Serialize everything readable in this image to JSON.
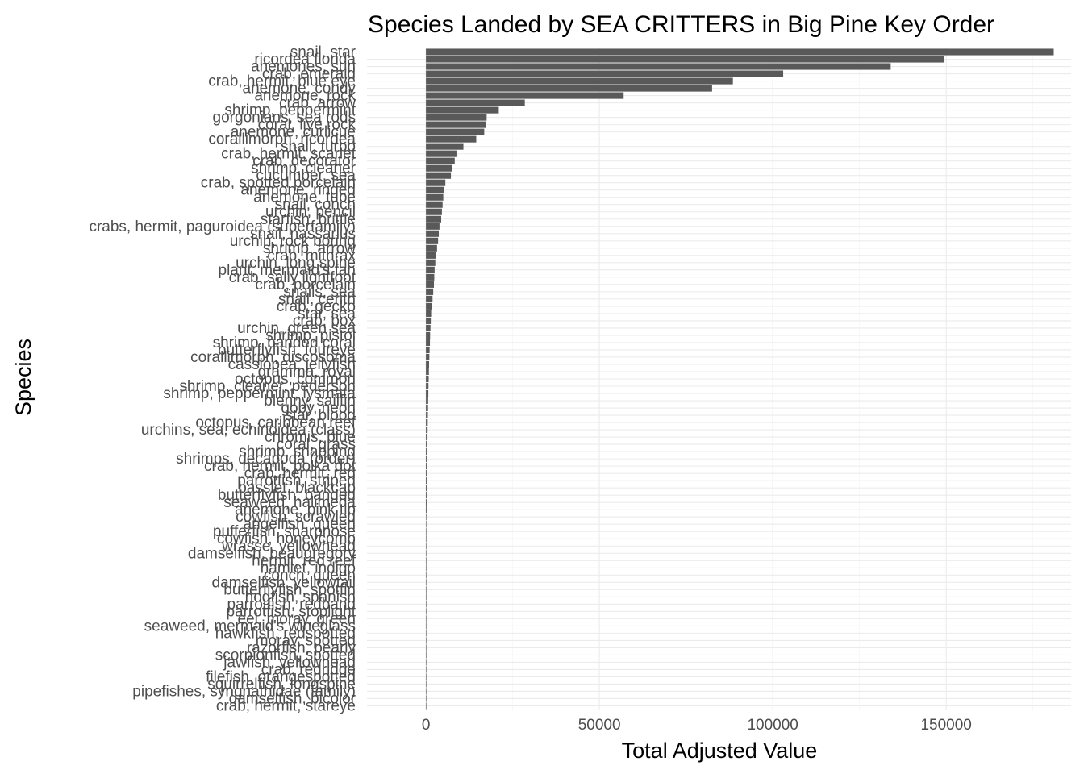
{
  "chart_data": {
    "type": "bar",
    "orientation": "horizontal",
    "title": "Species Landed by SEA CRITTERS in Big Pine Key Order",
    "xlabel": "Total Adjusted Value",
    "ylabel": "Species",
    "xlim": [
      -17000,
      186000
    ],
    "x_ticks": [
      0,
      50000,
      100000,
      150000
    ],
    "grid": true,
    "bar_color": "#595959",
    "categories": [
      "snail, star",
      "ricordea florida",
      "anemones, sun",
      "crab, emerald",
      "crab, hermit, blue eye",
      "anemone, condy",
      "anemone, rock",
      "crab, arrow",
      "shrimp, peppermint",
      "gorgonians, sea rods",
      "coral, live rock",
      "anemone, curlicue",
      "corallimorph, ricordea",
      "snail, turbo",
      "crab, hermit, scarlet",
      "crab, decorator",
      "shrimp, cleaner",
      "cucumber, sea",
      "crab, spotted porcelain",
      "anemone, ringed",
      "anemone, tube",
      "snail, conch",
      "urchin, pencil",
      "starfish, brittle",
      "crabs, hermit, paguroidea (superfamily)",
      "snail, nassarius",
      "urchin, rock boring",
      "shrimp, arrow",
      "crab, mithrax",
      "urchin, long spine",
      "plant, mermaid's fan",
      "crab, sally lightfoot",
      "crab, porcelain",
      "snails, sea",
      "snail, cerith",
      "crab, gecko",
      "star, sea",
      "crab, box",
      "urchin, green sea",
      "shrimp, pistol",
      "shrimp, banded coral",
      "butterflyfish, foureye",
      "corallimorph, discosoma",
      "cassiopea, jellyfish",
      "gramma, royal",
      "octopus, common",
      "shrimp, cleaner, pederson",
      "shrimp, peppermint, lysmata",
      "blenny, sailfin",
      "goby, neon",
      "star, blood",
      "octopus, caribbean reef",
      "urchins, sea, echinoidea (class)",
      "chromis, blue",
      "coral, grass",
      "shrimp, snapping",
      "shrimps, decapoda (order)",
      "crab, hermit, polka dot",
      "crab, hermit, red",
      "parrotfish, striped",
      "basslet, blackcap",
      "butterflyfish, banded",
      "seaweed, halimeda",
      "anemone, pink tip",
      "cowfish, scrawled",
      "angelfish, queen",
      "pufferfish, sharpnose",
      "cowfish, honeycomb",
      "wrasse, yellowhead",
      "damselfish, beaugregory",
      "hermit, red reef",
      "hamlet, indigo",
      "conch, queen",
      "damselfish, yellowtail",
      "butterflyfish, spotfin",
      "hogfish, spanish",
      "parrotfish, redband",
      "parrotfish, stoplight",
      "eel, moray, green",
      "seaweed, mermaid's wineglass",
      "hawkfish, redspotted",
      "moray, spotted",
      "razorfish, pearly",
      "scorpionfish, spotted",
      "jawfish, yellowhead",
      "crab, redridge",
      "filefish, orangespotted",
      "squirrelfish, longspine",
      "pipefishes, syngnathidae (family)",
      "damselfish, bicolor",
      "crab, hermit, stareye"
    ],
    "values": [
      181000,
      149500,
      134000,
      103000,
      88500,
      82500,
      57000,
      28500,
      21000,
      17500,
      17200,
      16800,
      14500,
      10800,
      8800,
      8300,
      7500,
      7200,
      5600,
      5200,
      5000,
      4800,
      4600,
      4400,
      3900,
      3700,
      3500,
      3200,
      2900,
      2700,
      2500,
      2400,
      2300,
      2100,
      1900,
      1700,
      1500,
      1400,
      1300,
      1200,
      1150,
      1050,
      980,
      900,
      850,
      790,
      730,
      690,
      640,
      600,
      560,
      520,
      480,
      450,
      420,
      390,
      360,
      330,
      300,
      280,
      260,
      240,
      220,
      200,
      0,
      0,
      0,
      0,
      0,
      0,
      0,
      0,
      0,
      0,
      0,
      0,
      0,
      0,
      0,
      0,
      0,
      0,
      0,
      0,
      0,
      0,
      0,
      0,
      0,
      0,
      0
    ]
  }
}
